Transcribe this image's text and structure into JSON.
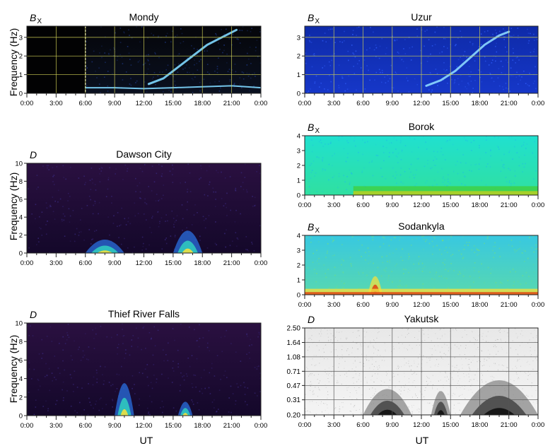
{
  "figure": {
    "xlabel": "UT",
    "ylabel": "Frequency (Hz)"
  },
  "chart_data": [
    {
      "type": "heatmap",
      "station": "Mondy",
      "component": "B",
      "component_sub": "X",
      "colormap": "jet-dark",
      "ylabel": "Frequency (Hz)",
      "x_ticks": [
        "0:00",
        "3:00",
        "6:00",
        "9:00",
        "12:00",
        "15:00",
        "18:00",
        "21:00",
        "0:00"
      ],
      "y_ticks": [
        "0",
        "1",
        "2",
        "3"
      ],
      "ylim": [
        0,
        3.6
      ],
      "grid": true,
      "grid_color": "#cccc55",
      "data_gap": [
        0,
        6
      ],
      "features": [
        {
          "kind": "rising_tone",
          "points": [
            [
              12.5,
              0.5
            ],
            [
              14,
              0.8
            ],
            [
              15.5,
              1.4
            ],
            [
              17,
              2.0
            ],
            [
              18.5,
              2.6
            ],
            [
              20,
              3.0
            ],
            [
              21.5,
              3.4
            ]
          ]
        },
        {
          "kind": "pc1_band",
          "points": [
            [
              6,
              0.3
            ],
            [
              9,
              0.3
            ],
            [
              12,
              0.25
            ],
            [
              15,
              0.3
            ],
            [
              18,
              0.35
            ],
            [
              21,
              0.4
            ],
            [
              24,
              0.3
            ]
          ]
        }
      ]
    },
    {
      "type": "heatmap",
      "station": "Uzur",
      "component": "B",
      "component_sub": "X",
      "colormap": "blue",
      "x_ticks": [
        "0:00",
        "3:00",
        "6:00",
        "9:00",
        "12:00",
        "15:00",
        "18:00",
        "21:00",
        "0:00"
      ],
      "y_ticks": [
        "0",
        "1",
        "2",
        "3"
      ],
      "ylim": [
        0,
        3.6
      ],
      "grid": true,
      "grid_color": "#cccc55",
      "features": [
        {
          "kind": "rising_tone",
          "points": [
            [
              12.5,
              0.4
            ],
            [
              14,
              0.7
            ],
            [
              15.5,
              1.2
            ],
            [
              17,
              1.9
            ],
            [
              18.5,
              2.6
            ],
            [
              20,
              3.1
            ],
            [
              21,
              3.3
            ]
          ]
        }
      ]
    },
    {
      "type": "heatmap",
      "station": "Dawson City",
      "component": "D",
      "colormap": "purple",
      "ylabel": "Frequency (Hz)",
      "x_ticks": [
        "0:00",
        "3:00",
        "6:00",
        "9:00",
        "12:00",
        "15:00",
        "18:00",
        "21:00",
        "0:00"
      ],
      "y_ticks": [
        "0",
        "2",
        "4",
        "6",
        "8",
        "10"
      ],
      "ylim": [
        0,
        10
      ],
      "grid": false,
      "features": [
        {
          "kind": "burst",
          "x": [
            6,
            10
          ],
          "fmax": 3
        },
        {
          "kind": "burst",
          "x": [
            15,
            18
          ],
          "fmax": 5
        }
      ]
    },
    {
      "type": "heatmap",
      "station": "Borok",
      "component": "B",
      "component_sub": "X",
      "colormap": "cyan-green",
      "x_ticks": [
        "0:00",
        "3:00",
        "6:00",
        "9:00",
        "12:00",
        "15:00",
        "18:00",
        "21:00",
        "0:00"
      ],
      "y_ticks": [
        "0",
        "1",
        "2",
        "3",
        "4"
      ],
      "ylim": [
        0,
        4
      ],
      "grid": false,
      "features": [
        {
          "kind": "band",
          "x": [
            5,
            24
          ],
          "fmax": 0.6
        }
      ]
    },
    {
      "type": "heatmap",
      "station": "Sodankyla",
      "component": "B",
      "component_sub": "X",
      "colormap": "cyan-red",
      "x_ticks": [
        "0:00",
        "3:00",
        "6:00",
        "9:00",
        "12:00",
        "15:00",
        "18:00",
        "21:00",
        "0:00"
      ],
      "y_ticks": [
        "0",
        "1",
        "2",
        "3",
        "4"
      ],
      "ylim": [
        0,
        4
      ],
      "grid": false,
      "features": [
        {
          "kind": "burst",
          "x": [
            6.5,
            8
          ],
          "fmax": 2.5
        },
        {
          "kind": "band",
          "x": [
            0,
            24
          ],
          "fmax": 0.4
        }
      ]
    },
    {
      "type": "heatmap",
      "station": "Thief River Falls",
      "component": "D",
      "colormap": "purple",
      "ylabel": "Frequency (Hz)",
      "x_ticks": [
        "0:00",
        "3:00",
        "6:00",
        "9:00",
        "12:00",
        "15:00",
        "18:00",
        "21:00",
        "0:00"
      ],
      "y_ticks": [
        "0",
        "2",
        "4",
        "6",
        "8",
        "10"
      ],
      "ylim": [
        0,
        10
      ],
      "grid": false,
      "features": [
        {
          "kind": "burst",
          "x": [
            9,
            11
          ],
          "fmax": 7
        },
        {
          "kind": "burst",
          "x": [
            15.5,
            17
          ],
          "fmax": 3
        }
      ]
    },
    {
      "type": "heatmap",
      "station": "Yakutsk",
      "component": "D",
      "colormap": "gray",
      "xlabel": "UT",
      "x_ticks": [
        "0:00",
        "3:00",
        "6:00",
        "9:00",
        "12:00",
        "15:00",
        "18:00",
        "21:00",
        "0:00"
      ],
      "y_ticks": [
        "0.20",
        "0.31",
        "0.47",
        "0.71",
        "1.08",
        "1.64",
        "2.50"
      ],
      "ylim": [
        0.2,
        2.5
      ],
      "y_scale": "log",
      "grid": true,
      "grid_color": "#555555",
      "features": [
        {
          "kind": "burst",
          "x": [
            6,
            11
          ],
          "fmax": 0.9
        },
        {
          "kind": "burst",
          "x": [
            13,
            15
          ],
          "fmax": 0.8
        },
        {
          "kind": "burst",
          "x": [
            16,
            24
          ],
          "fmax": 1.5
        }
      ]
    }
  ]
}
